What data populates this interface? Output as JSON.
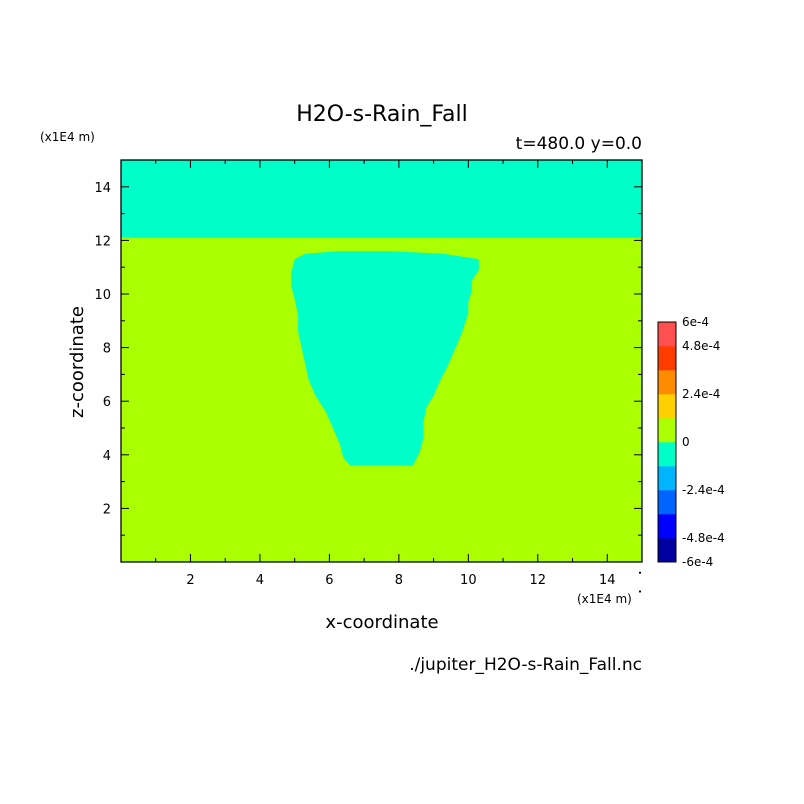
{
  "chart_data": {
    "type": "heatmap",
    "title": "H2O-s-Rain_Fall",
    "subtitle": "t=480.0 y=0.0",
    "xlabel": "x-coordinate",
    "ylabel": "z-coordinate",
    "x_unit": "(x1E4 m)",
    "y_unit": "(x1E4 m)",
    "source": "./jupiter_H2O-s-Rain_Fall.nc",
    "xlim": [
      0,
      15
    ],
    "ylim": [
      0,
      15
    ],
    "xticks": [
      2,
      4,
      6,
      8,
      10,
      12,
      14
    ],
    "yticks": [
      2,
      4,
      6,
      8,
      10,
      12,
      14
    ],
    "colorbar": {
      "range": [
        -0.0006,
        0.0006
      ],
      "tick_labels": [
        "6e-4",
        "4.8e-4",
        "2.4e-4",
        "0",
        "-2.4e-4",
        "-4.8e-4",
        "-6e-4"
      ],
      "colors_bottom_to_top": [
        "#0000a0",
        "#0000ff",
        "#0064ff",
        "#00b4ff",
        "#00ffc8",
        "#aaff00",
        "#ffd000",
        "#ff8c00",
        "#ff3c00",
        "#ff5050"
      ]
    },
    "regions": [
      {
        "name": "background",
        "value_range": [
          0,
          0.00012
        ],
        "color": "#aaff00"
      },
      {
        "name": "upper band",
        "z_range": [
          12.1,
          15
        ],
        "value_range": [
          -0.00012,
          0
        ],
        "color": "#00ffc8"
      },
      {
        "name": "rain plume",
        "value_range": [
          -0.00012,
          0
        ],
        "color": "#00ffc8",
        "outline": [
          [
            5.0,
            11.3
          ],
          [
            5.3,
            11.5
          ],
          [
            6.3,
            11.6
          ],
          [
            7.7,
            11.6
          ],
          [
            9.3,
            11.5
          ],
          [
            10.3,
            11.3
          ],
          [
            10.3,
            10.9
          ],
          [
            10.1,
            10.5
          ],
          [
            10.1,
            10.1
          ],
          [
            10.0,
            9.7
          ],
          [
            10.0,
            9.3
          ],
          [
            9.9,
            8.9
          ],
          [
            9.8,
            8.5
          ],
          [
            9.6,
            7.9
          ],
          [
            9.4,
            7.3
          ],
          [
            9.2,
            6.8
          ],
          [
            9.0,
            6.2
          ],
          [
            8.8,
            5.8
          ],
          [
            8.7,
            5.2
          ],
          [
            8.7,
            4.6
          ],
          [
            8.6,
            4.1
          ],
          [
            8.4,
            3.6
          ],
          [
            6.6,
            3.6
          ],
          [
            6.4,
            3.9
          ],
          [
            6.3,
            4.4
          ],
          [
            6.1,
            5.0
          ],
          [
            5.9,
            5.6
          ],
          [
            5.6,
            6.2
          ],
          [
            5.4,
            6.8
          ],
          [
            5.3,
            7.4
          ],
          [
            5.2,
            8.0
          ],
          [
            5.1,
            8.6
          ],
          [
            5.1,
            9.2
          ],
          [
            5.0,
            9.8
          ],
          [
            4.9,
            10.3
          ],
          [
            4.9,
            10.8
          ]
        ]
      }
    ],
    "dots": [
      [
        15,
        -0.4
      ],
      [
        15,
        -1.1
      ]
    ]
  }
}
